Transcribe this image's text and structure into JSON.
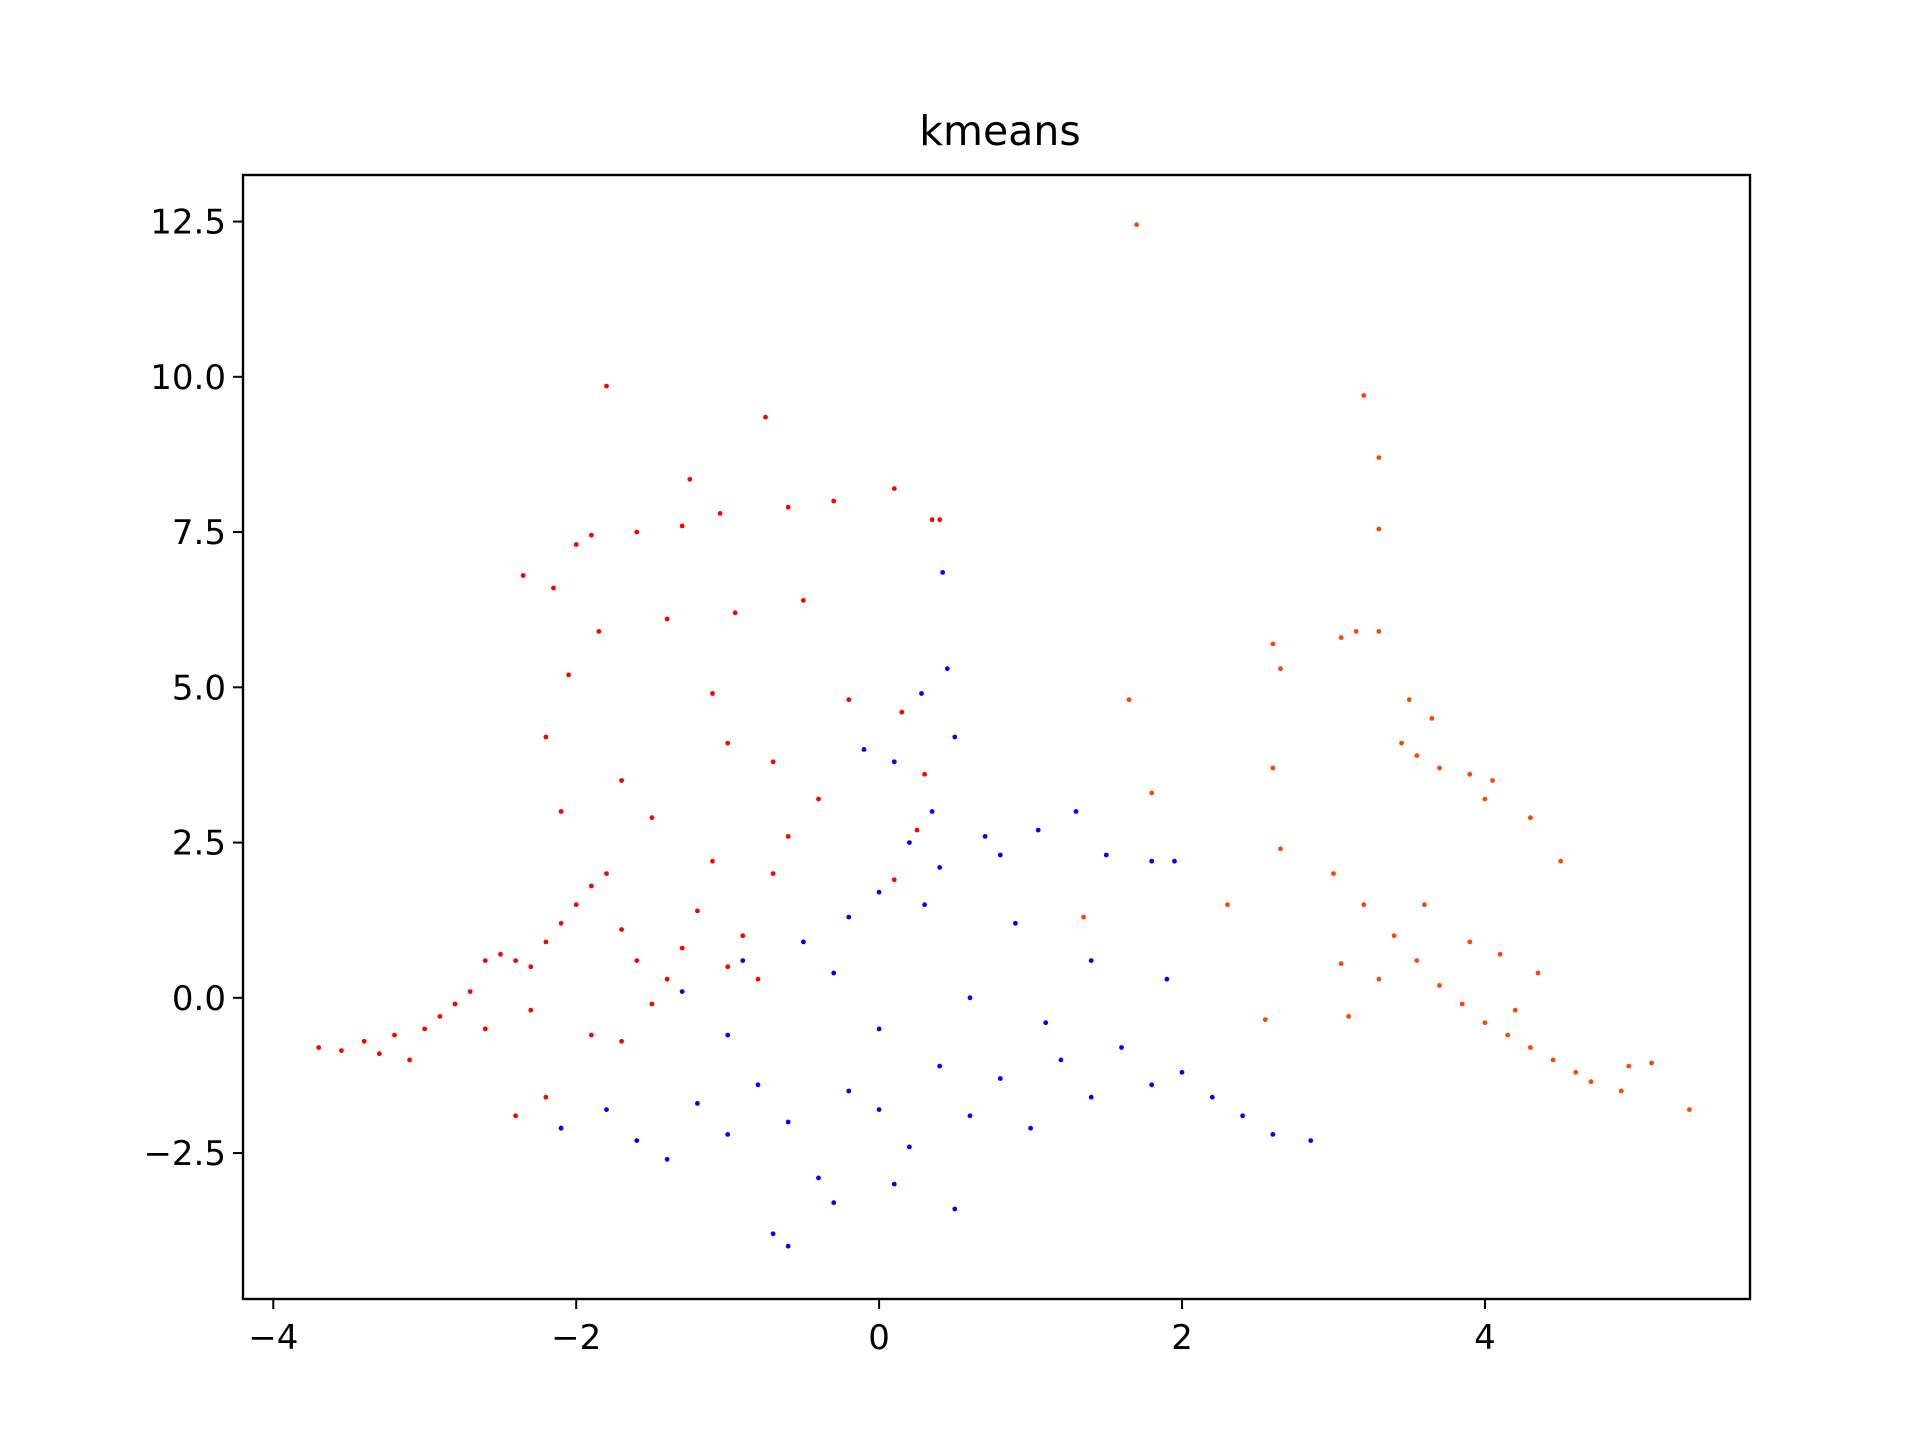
{
  "chart_data": {
    "type": "scatter",
    "title": "kmeans",
    "xlabel": "",
    "ylabel": "",
    "xlim": [
      -4.2,
      5.75
    ],
    "ylim": [
      -4.85,
      13.25
    ],
    "x_ticks": [
      -4,
      -2,
      0,
      2,
      4
    ],
    "x_tick_labels": [
      "−4",
      "−2",
      "0",
      "2",
      "4"
    ],
    "y_ticks": [
      -2.5,
      0.0,
      2.5,
      5.0,
      7.5,
      10.0,
      12.5
    ],
    "y_tick_labels": [
      "−2.5",
      "0.0",
      "2.5",
      "5.0",
      "7.5",
      "10.0",
      "12.5"
    ],
    "grid": false,
    "legend": "none",
    "marker_size": "small",
    "series": [
      {
        "color": "#ff0000",
        "points": [
          [
            -3.7,
            -0.8
          ],
          [
            -3.55,
            -0.85
          ],
          [
            -3.4,
            -0.7
          ],
          [
            -3.3,
            -0.9
          ],
          [
            -3.2,
            -0.6
          ],
          [
            -3.1,
            -1.0
          ],
          [
            -3.0,
            -0.5
          ],
          [
            -2.9,
            -0.3
          ],
          [
            -2.8,
            -0.1
          ],
          [
            -2.7,
            0.1
          ],
          [
            -2.6,
            0.6
          ],
          [
            -2.5,
            0.7
          ],
          [
            -2.4,
            0.6
          ],
          [
            -2.3,
            0.5
          ],
          [
            -2.2,
            0.9
          ],
          [
            -2.1,
            1.2
          ],
          [
            -2.0,
            1.5
          ],
          [
            -1.9,
            1.8
          ],
          [
            -1.8,
            2.0
          ],
          [
            -1.7,
            1.1
          ],
          [
            -1.6,
            0.6
          ],
          [
            -1.5,
            -0.1
          ],
          [
            -1.4,
            0.3
          ],
          [
            -1.3,
            0.8
          ],
          [
            -1.2,
            1.4
          ],
          [
            -1.1,
            2.2
          ],
          [
            -1.0,
            0.5
          ],
          [
            -0.9,
            1.0
          ],
          [
            -0.8,
            0.3
          ],
          [
            -0.7,
            2.0
          ],
          [
            -2.6,
            -0.5
          ],
          [
            -2.3,
            -0.2
          ],
          [
            -1.9,
            -0.6
          ],
          [
            -1.7,
            -0.7
          ],
          [
            -2.4,
            -1.9
          ],
          [
            -2.1,
            -2.1
          ],
          [
            -2.2,
            -1.6
          ],
          [
            -1.8,
            9.85
          ],
          [
            -0.75,
            9.35
          ],
          [
            -1.25,
            8.35
          ],
          [
            0.1,
            8.2
          ],
          [
            -0.6,
            7.9
          ],
          [
            -0.3,
            8.0
          ],
          [
            -1.05,
            7.8
          ],
          [
            0.35,
            7.7
          ],
          [
            0.4,
            7.7
          ],
          [
            -1.3,
            7.6
          ],
          [
            -2.0,
            7.3
          ],
          [
            -1.9,
            7.45
          ],
          [
            -1.6,
            7.5
          ],
          [
            -2.35,
            6.8
          ],
          [
            -2.15,
            6.6
          ],
          [
            -1.85,
            5.9
          ],
          [
            -1.4,
            6.1
          ],
          [
            -0.95,
            6.2
          ],
          [
            -0.5,
            6.4
          ],
          [
            -2.05,
            5.2
          ],
          [
            -1.1,
            4.9
          ],
          [
            -0.2,
            4.8
          ],
          [
            0.15,
            4.6
          ],
          [
            -2.2,
            4.2
          ],
          [
            -1.0,
            4.1
          ],
          [
            -0.7,
            3.8
          ],
          [
            0.3,
            3.6
          ],
          [
            -0.4,
            3.2
          ],
          [
            -1.7,
            3.5
          ],
          [
            -2.1,
            3.0
          ],
          [
            -1.5,
            2.9
          ],
          [
            -0.6,
            2.6
          ],
          [
            0.1,
            1.9
          ],
          [
            0.25,
            2.7
          ]
        ]
      },
      {
        "color": "#0000ff",
        "points": [
          [
            -2.1,
            -2.1
          ],
          [
            -1.8,
            -1.8
          ],
          [
            -1.6,
            -2.3
          ],
          [
            -1.4,
            -2.6
          ],
          [
            -1.2,
            -1.7
          ],
          [
            -1.0,
            -2.2
          ],
          [
            -0.8,
            -1.4
          ],
          [
            -0.6,
            -2.0
          ],
          [
            -0.4,
            -2.9
          ],
          [
            -0.2,
            -1.5
          ],
          [
            0.0,
            -1.8
          ],
          [
            0.2,
            -2.4
          ],
          [
            0.4,
            -1.1
          ],
          [
            0.6,
            -1.9
          ],
          [
            0.8,
            -1.3
          ],
          [
            1.0,
            -2.1
          ],
          [
            1.2,
            -1.0
          ],
          [
            1.4,
            -1.6
          ],
          [
            1.6,
            -0.8
          ],
          [
            1.8,
            -1.4
          ],
          [
            2.0,
            -1.2
          ],
          [
            2.2,
            -1.6
          ],
          [
            2.4,
            -1.9
          ],
          [
            2.6,
            -2.2
          ],
          [
            2.85,
            -2.3
          ],
          [
            -0.7,
            -3.8
          ],
          [
            -0.6,
            -4.0
          ],
          [
            -0.3,
            -3.3
          ],
          [
            0.1,
            -3.0
          ],
          [
            0.5,
            -3.4
          ],
          [
            -1.3,
            0.1
          ],
          [
            -0.9,
            0.6
          ],
          [
            -0.5,
            0.9
          ],
          [
            -0.2,
            1.3
          ],
          [
            0.0,
            1.7
          ],
          [
            0.1,
            3.8
          ],
          [
            0.2,
            2.5
          ],
          [
            0.3,
            1.5
          ],
          [
            0.35,
            3.0
          ],
          [
            0.4,
            2.1
          ],
          [
            0.45,
            5.3
          ],
          [
            0.5,
            4.2
          ],
          [
            0.42,
            6.85
          ],
          [
            0.28,
            4.9
          ],
          [
            -0.1,
            4.0
          ],
          [
            0.7,
            2.6
          ],
          [
            0.8,
            2.3
          ],
          [
            1.05,
            2.7
          ],
          [
            1.3,
            3.0
          ],
          [
            1.5,
            2.3
          ],
          [
            1.8,
            2.2
          ],
          [
            1.95,
            2.2
          ],
          [
            0.9,
            1.2
          ],
          [
            1.4,
            0.6
          ],
          [
            1.9,
            0.3
          ],
          [
            -0.3,
            0.4
          ],
          [
            0.6,
            0.0
          ],
          [
            1.1,
            -0.4
          ],
          [
            -1.0,
            -0.6
          ],
          [
            0.0,
            -0.5
          ]
        ]
      },
      {
        "color": "#ff4500",
        "points": [
          [
            1.7,
            12.45
          ],
          [
            3.2,
            9.7
          ],
          [
            3.3,
            8.7
          ],
          [
            3.3,
            7.55
          ],
          [
            3.15,
            5.9
          ],
          [
            3.3,
            5.9
          ],
          [
            2.6,
            5.7
          ],
          [
            2.65,
            5.3
          ],
          [
            3.05,
            5.8
          ],
          [
            3.5,
            4.8
          ],
          [
            1.65,
            4.8
          ],
          [
            3.65,
            4.5
          ],
          [
            3.45,
            4.1
          ],
          [
            3.55,
            3.9
          ],
          [
            3.7,
            3.7
          ],
          [
            3.9,
            3.6
          ],
          [
            4.0,
            3.2
          ],
          [
            2.6,
            3.7
          ],
          [
            4.05,
            3.5
          ],
          [
            4.3,
            2.9
          ],
          [
            1.8,
            3.3
          ],
          [
            2.65,
            2.4
          ],
          [
            3.0,
            2.0
          ],
          [
            3.2,
            1.5
          ],
          [
            3.4,
            1.0
          ],
          [
            3.55,
            0.6
          ],
          [
            3.7,
            0.2
          ],
          [
            3.85,
            -0.1
          ],
          [
            4.0,
            -0.4
          ],
          [
            4.15,
            -0.6
          ],
          [
            4.3,
            -0.8
          ],
          [
            4.45,
            -1.0
          ],
          [
            4.6,
            -1.2
          ],
          [
            4.7,
            -1.35
          ],
          [
            3.05,
            0.55
          ],
          [
            3.3,
            0.3
          ],
          [
            3.6,
            1.5
          ],
          [
            3.9,
            0.9
          ],
          [
            4.1,
            0.7
          ],
          [
            4.35,
            0.4
          ],
          [
            4.5,
            2.2
          ],
          [
            4.95,
            -1.1
          ],
          [
            5.1,
            -1.05
          ],
          [
            5.35,
            -1.8
          ],
          [
            4.9,
            -1.5
          ],
          [
            4.2,
            -0.2
          ],
          [
            3.1,
            -0.3
          ],
          [
            2.3,
            1.5
          ],
          [
            2.55,
            -0.35
          ],
          [
            1.35,
            1.3
          ]
        ]
      }
    ]
  }
}
